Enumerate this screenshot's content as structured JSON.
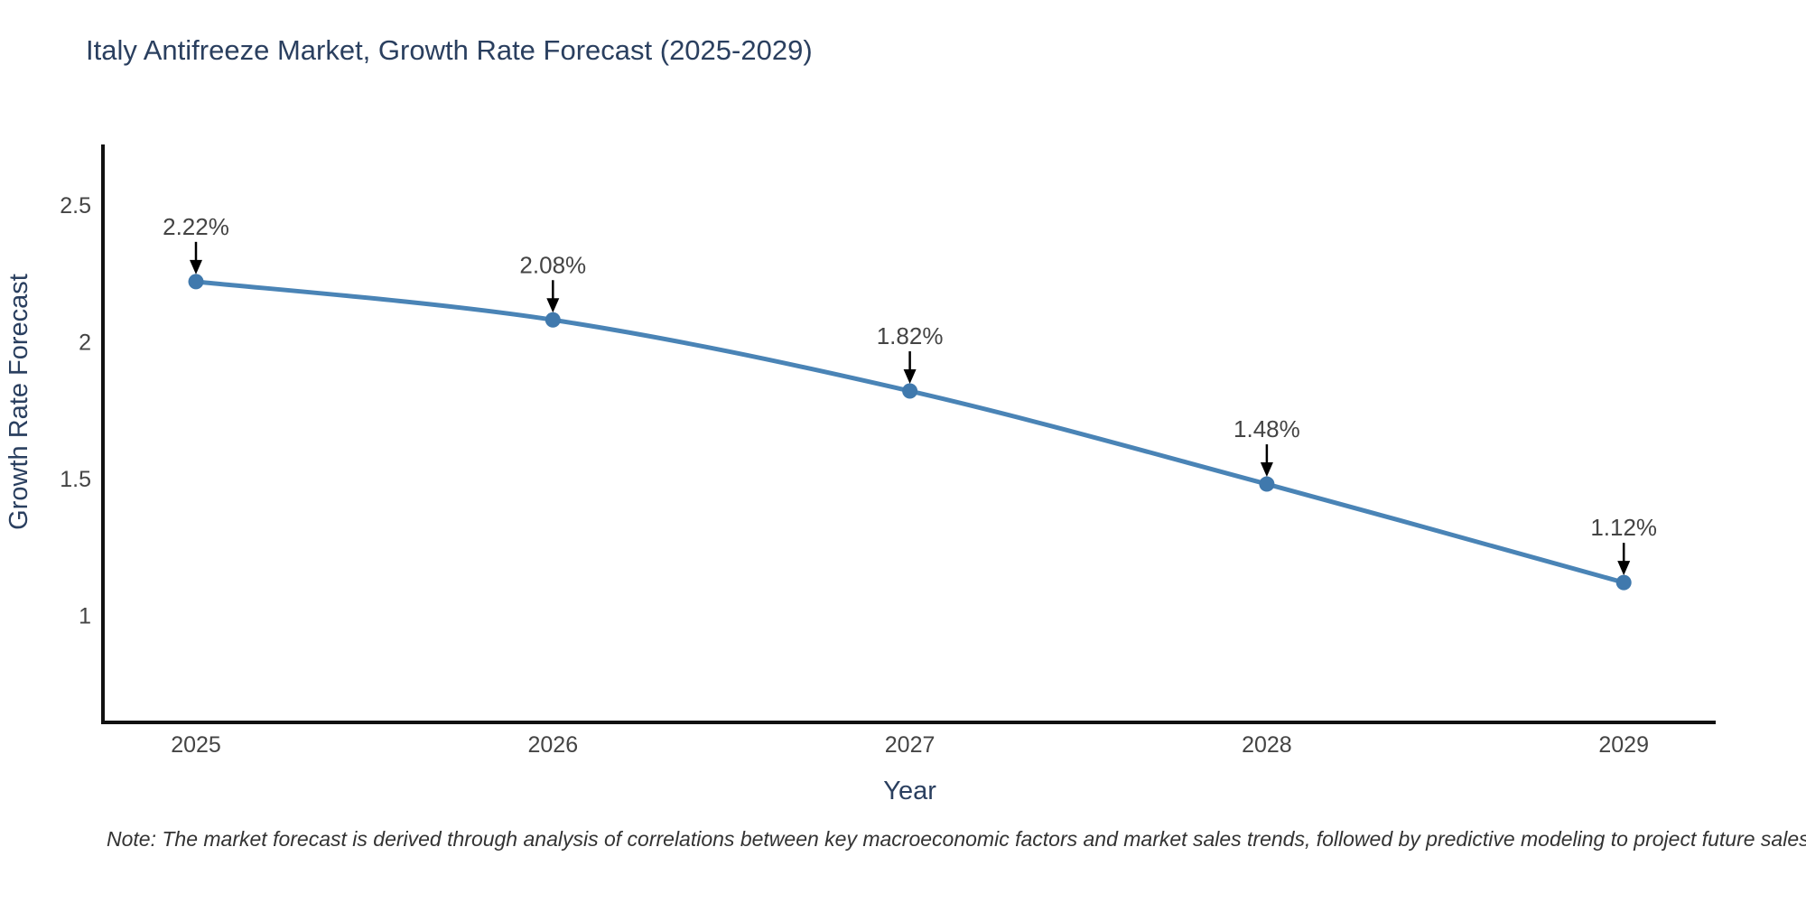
{
  "title": "Italy Antifreeze Market, Growth Rate Forecast (2025-2029)",
  "note": "Note: The market forecast is derived through analysis of correlations between key macroeconomic factors and market sales trends, followed by predictive modeling to project future sales.",
  "chart_data": {
    "type": "line",
    "title": "Italy Antifreeze Market, Growth Rate Forecast (2025-2029)",
    "x": [
      "2025",
      "2026",
      "2027",
      "2028",
      "2029"
    ],
    "values": [
      2.22,
      2.08,
      1.82,
      1.48,
      1.12
    ],
    "point_labels": [
      "2.22%",
      "2.08%",
      "1.82%",
      "1.48%",
      "1.12%"
    ],
    "xlabel": "Year",
    "ylabel": "Growth Rate Forecast",
    "yticks": [
      2.5,
      2,
      1.5,
      1
    ],
    "ylim": [
      0.6,
      2.72
    ],
    "line_shape": "spline",
    "grid": "off",
    "legend": "none",
    "colors": {
      "line": "#4a84b6",
      "marker": "#4079ad",
      "axis": "#111111",
      "tick_label": "#444444",
      "annotation_text": "#444444",
      "annotation_arrow": "#000000",
      "title_text": "#2a3f5f"
    }
  }
}
